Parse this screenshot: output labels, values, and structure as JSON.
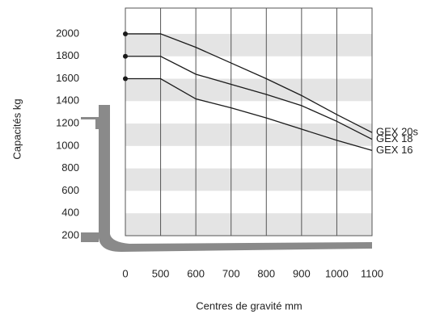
{
  "chart_data": {
    "type": "line",
    "x_label": "Centres de gravité mm",
    "y_label": "Capacités kg",
    "categories": [
      "0",
      "500",
      "600",
      "700",
      "800",
      "900",
      "1000",
      "1100"
    ],
    "series": [
      {
        "name": "GEX 20s",
        "color": "#1a1a1a",
        "values": [
          2000,
          2000,
          1880,
          1740,
          1600,
          1450,
          1280,
          1120
        ]
      },
      {
        "name": "GEX 18",
        "color": "#1a1a1a",
        "values": [
          1800,
          1800,
          1640,
          1550,
          1460,
          1360,
          1220,
          1060
        ]
      },
      {
        "name": "GEX 16",
        "color": "#1a1a1a",
        "values": [
          1600,
          1600,
          1420,
          1340,
          1250,
          1150,
          1050,
          960
        ]
      }
    ],
    "ylim": [
      200,
      2230
    ],
    "yticks": [
      200,
      400,
      600,
      800,
      1000,
      1200,
      1400,
      1600,
      1800,
      2000
    ],
    "band_color": "#e4e4e4"
  }
}
